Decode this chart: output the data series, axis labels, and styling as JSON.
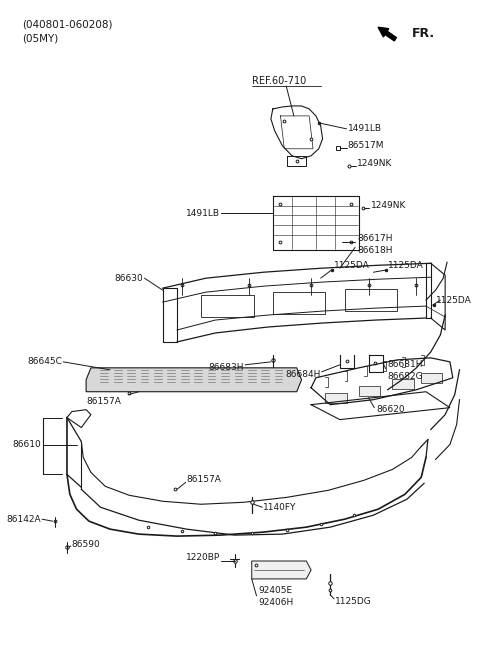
{
  "bg_color": "#ffffff",
  "line_color": "#1a1a1a",
  "text_color": "#1a1a1a",
  "header_line1": "(040801-060208)",
  "header_line2": "(05MY)",
  "fr_label": "FR.",
  "ref_label": "REF.60-710",
  "figsize": [
    4.8,
    6.55
  ],
  "dpi": 100
}
